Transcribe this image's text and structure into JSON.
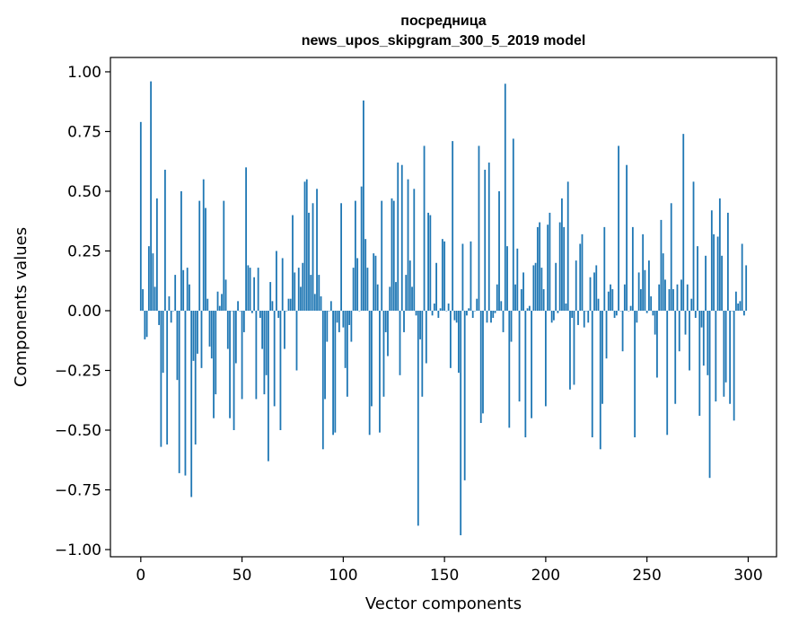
{
  "chart_data": {
    "type": "bar",
    "title": "посредница",
    "subtitle": "news_upos_skipgram_300_5_2019 model",
    "xlabel": "Vector components",
    "ylabel": "Components values",
    "xlim": [
      -15,
      314
    ],
    "ylim": [
      -1.03,
      1.06
    ],
    "xticks": [
      0,
      50,
      100,
      150,
      200,
      250,
      300
    ],
    "yticks": [
      1.0,
      0.75,
      0.5,
      0.25,
      0.0,
      -0.25,
      -0.5,
      -0.75,
      -1.0
    ],
    "ytick_labels": [
      "1.00",
      "0.75",
      "0.50",
      "0.25",
      "0.00",
      "−0.25",
      "−0.50",
      "−0.75",
      "−1.00"
    ],
    "grid": false,
    "bar_color": "#1f77b4",
    "x": "0..299",
    "values": [
      0.79,
      0.09,
      -0.12,
      -0.11,
      0.27,
      0.96,
      0.24,
      0.1,
      0.47,
      -0.06,
      -0.57,
      -0.26,
      0.59,
      -0.56,
      0.06,
      -0.05,
      0.0,
      0.15,
      -0.29,
      -0.68,
      0.5,
      0.17,
      -0.69,
      0.18,
      0.11,
      -0.78,
      -0.21,
      -0.56,
      -0.18,
      0.46,
      -0.24,
      0.55,
      0.43,
      0.05,
      -0.15,
      -0.2,
      -0.45,
      -0.35,
      0.08,
      0.02,
      0.07,
      0.46,
      0.13,
      -0.16,
      -0.45,
      0.0,
      -0.5,
      -0.22,
      0.04,
      0.0,
      -0.37,
      -0.09,
      0.6,
      0.19,
      0.18,
      -0.01,
      0.14,
      -0.37,
      0.18,
      -0.03,
      -0.16,
      -0.35,
      -0.27,
      -0.63,
      0.12,
      0.04,
      -0.4,
      0.25,
      -0.03,
      -0.5,
      0.22,
      -0.16,
      0.0,
      0.05,
      0.05,
      0.4,
      0.16,
      -0.25,
      0.18,
      0.1,
      0.2,
      0.54,
      0.55,
      0.41,
      0.15,
      0.45,
      0.07,
      0.51,
      0.15,
      0.06,
      -0.58,
      -0.37,
      -0.13,
      0.0,
      0.04,
      -0.52,
      -0.51,
      -0.05,
      -0.09,
      0.45,
      -0.07,
      -0.24,
      -0.36,
      -0.06,
      -0.13,
      0.18,
      0.46,
      0.22,
      0.0,
      0.52,
      0.88,
      0.3,
      0.18,
      -0.52,
      -0.4,
      0.24,
      0.23,
      0.11,
      -0.51,
      0.46,
      -0.36,
      -0.09,
      -0.19,
      0.1,
      0.47,
      0.46,
      0.12,
      0.62,
      -0.27,
      0.61,
      -0.09,
      0.15,
      0.55,
      0.21,
      0.1,
      0.51,
      -0.02,
      -0.9,
      -0.12,
      -0.36,
      0.69,
      -0.22,
      0.41,
      0.4,
      -0.02,
      0.03,
      0.2,
      -0.03,
      0.01,
      0.3,
      0.29,
      0.0,
      0.03,
      -0.24,
      0.71,
      -0.04,
      -0.05,
      -0.26,
      -0.94,
      0.28,
      -0.71,
      -0.02,
      0.01,
      0.29,
      -0.03,
      0.0,
      0.05,
      0.69,
      -0.47,
      -0.43,
      0.59,
      -0.05,
      0.62,
      -0.05,
      -0.03,
      -0.01,
      0.11,
      0.5,
      0.04,
      -0.09,
      0.95,
      0.27,
      -0.49,
      -0.13,
      0.72,
      0.11,
      0.26,
      -0.38,
      0.09,
      0.16,
      -0.53,
      0.01,
      0.02,
      -0.45,
      0.19,
      0.2,
      0.35,
      0.37,
      0.18,
      0.09,
      -0.4,
      0.36,
      0.41,
      -0.05,
      -0.04,
      0.2,
      -0.01,
      0.37,
      0.47,
      0.35,
      0.03,
      0.54,
      -0.33,
      -0.03,
      -0.31,
      0.21,
      -0.06,
      0.28,
      0.32,
      -0.07,
      0.0,
      -0.05,
      0.14,
      -0.53,
      0.16,
      0.19,
      0.05,
      -0.58,
      -0.39,
      0.35,
      -0.2,
      0.08,
      0.11,
      0.09,
      -0.03,
      -0.02,
      0.69,
      0.0,
      -0.17,
      0.11,
      0.61,
      0.0,
      0.02,
      0.35,
      -0.53,
      -0.05,
      0.16,
      0.09,
      0.32,
      0.17,
      -0.01,
      0.21,
      0.06,
      -0.02,
      -0.1,
      -0.28,
      0.11,
      0.38,
      0.24,
      0.13,
      -0.52,
      0.09,
      0.45,
      0.09,
      -0.39,
      0.11,
      -0.17,
      0.13,
      0.74,
      -0.1,
      0.11,
      -0.25,
      0.05,
      0.54,
      -0.03,
      0.27,
      -0.44,
      -0.07,
      -0.23,
      0.23,
      -0.27,
      -0.7,
      0.42,
      0.32,
      -0.38,
      0.31,
      0.47,
      0.23,
      -0.36,
      -0.3,
      0.41,
      -0.39,
      0.0,
      -0.46,
      0.08,
      0.03,
      0.04,
      0.28,
      -0.02,
      0.19
    ]
  }
}
